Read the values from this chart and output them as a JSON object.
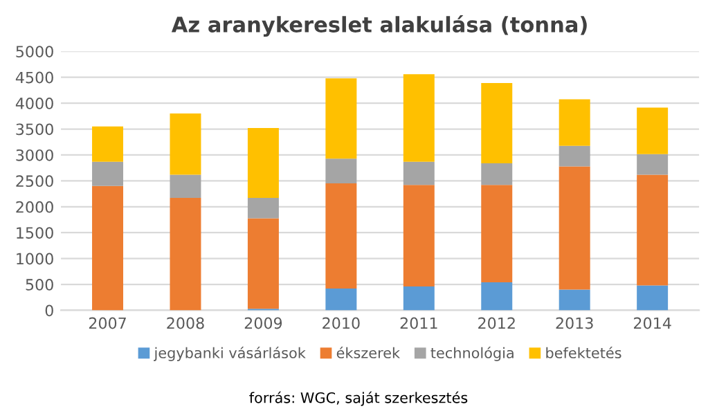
{
  "chart_data": {
    "type": "bar",
    "stacked": true,
    "title": "Az aranykereslet alakulása (tonna)",
    "categories": [
      "2007",
      "2008",
      "2009",
      "2010",
      "2011",
      "2012",
      "2013",
      "2014"
    ],
    "series": [
      {
        "name": "jegybanki vásárlások",
        "color": "#5b9bd5",
        "values": [
          0,
          0,
          30,
          420,
          460,
          540,
          400,
          480
        ]
      },
      {
        "name": "ékszerek",
        "color": "#ed7d31",
        "values": [
          2400,
          2170,
          1745,
          2030,
          1960,
          1880,
          2380,
          2140
        ]
      },
      {
        "name": "technológia",
        "color": "#a5a5a5",
        "values": [
          470,
          450,
          395,
          480,
          450,
          420,
          395,
          395
        ]
      },
      {
        "name": "befektetés",
        "color": "#ffc000",
        "values": [
          680,
          1180,
          1350,
          1550,
          1690,
          1550,
          900,
          900
        ]
      }
    ],
    "ylim": [
      0,
      5000
    ],
    "yticks": [
      0,
      500,
      1000,
      1500,
      2000,
      2500,
      3000,
      3500,
      4000,
      4500,
      5000
    ],
    "grid": "y",
    "legend": "bottom",
    "annotations": [
      "forrás: WGC, saját szerkesztés"
    ]
  }
}
